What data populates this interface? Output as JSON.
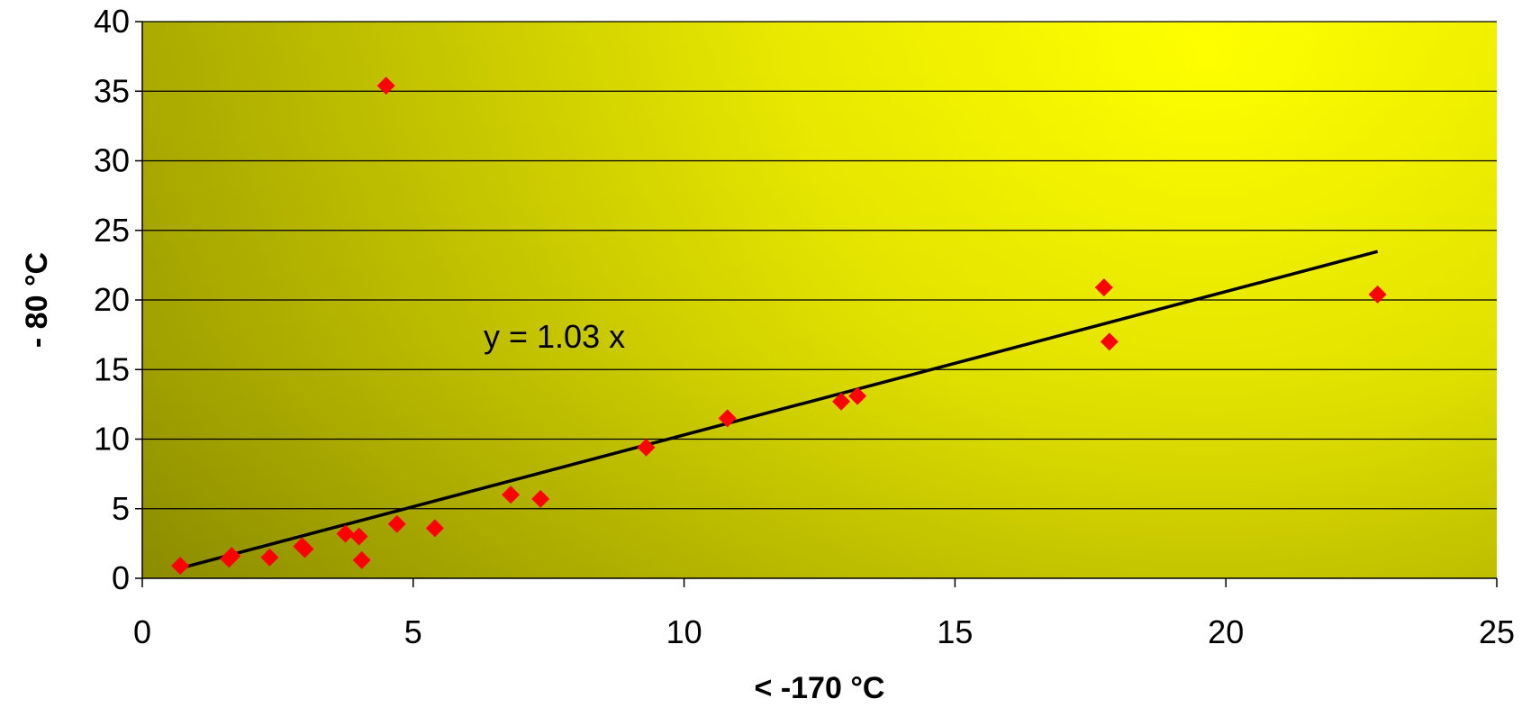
{
  "chart_data": {
    "type": "scatter",
    "xlabel": "< -170 °C",
    "ylabel": "- 80 °C",
    "xlim": [
      0,
      25
    ],
    "ylim": [
      0,
      40
    ],
    "x_ticks": [
      0,
      5,
      10,
      15,
      20,
      25
    ],
    "y_ticks": [
      0,
      5,
      10,
      15,
      20,
      25,
      30,
      35,
      40
    ],
    "x_tick_labels": [
      "0",
      "5",
      "10",
      "15",
      "20",
      "25"
    ],
    "y_tick_labels": [
      "0",
      "5",
      "10",
      "15",
      "20",
      "25",
      "30",
      "35",
      "40"
    ],
    "grid": "horizontal",
    "legend": "none",
    "points": [
      {
        "x": 0.7,
        "y": 0.9
      },
      {
        "x": 1.6,
        "y": 1.4
      },
      {
        "x": 1.65,
        "y": 1.6
      },
      {
        "x": 2.35,
        "y": 1.5
      },
      {
        "x": 2.95,
        "y": 2.3
      },
      {
        "x": 3.0,
        "y": 2.1
      },
      {
        "x": 3.75,
        "y": 3.2
      },
      {
        "x": 4.0,
        "y": 3.0
      },
      {
        "x": 4.05,
        "y": 1.3
      },
      {
        "x": 4.5,
        "y": 35.4
      },
      {
        "x": 4.7,
        "y": 3.9
      },
      {
        "x": 5.4,
        "y": 3.6
      },
      {
        "x": 6.8,
        "y": 6.0
      },
      {
        "x": 7.35,
        "y": 5.7
      },
      {
        "x": 9.3,
        "y": 9.4
      },
      {
        "x": 10.8,
        "y": 11.5
      },
      {
        "x": 12.9,
        "y": 12.7
      },
      {
        "x": 13.2,
        "y": 13.1
      },
      {
        "x": 17.75,
        "y": 20.9
      },
      {
        "x": 17.85,
        "y": 17.0
      },
      {
        "x": 22.8,
        "y": 20.4
      }
    ],
    "trendline": {
      "equation": "y = 1.03 x",
      "slope": 1.03,
      "x_range": [
        0.7,
        22.8
      ]
    },
    "colors": {
      "marker": "#ff0000",
      "trendline": "#000000",
      "gridline": "#000000",
      "plot_gradient_dark": "#9a9a00",
      "plot_gradient_mid": "#cccc00",
      "plot_gradient_bright": "#ffff00"
    }
  }
}
